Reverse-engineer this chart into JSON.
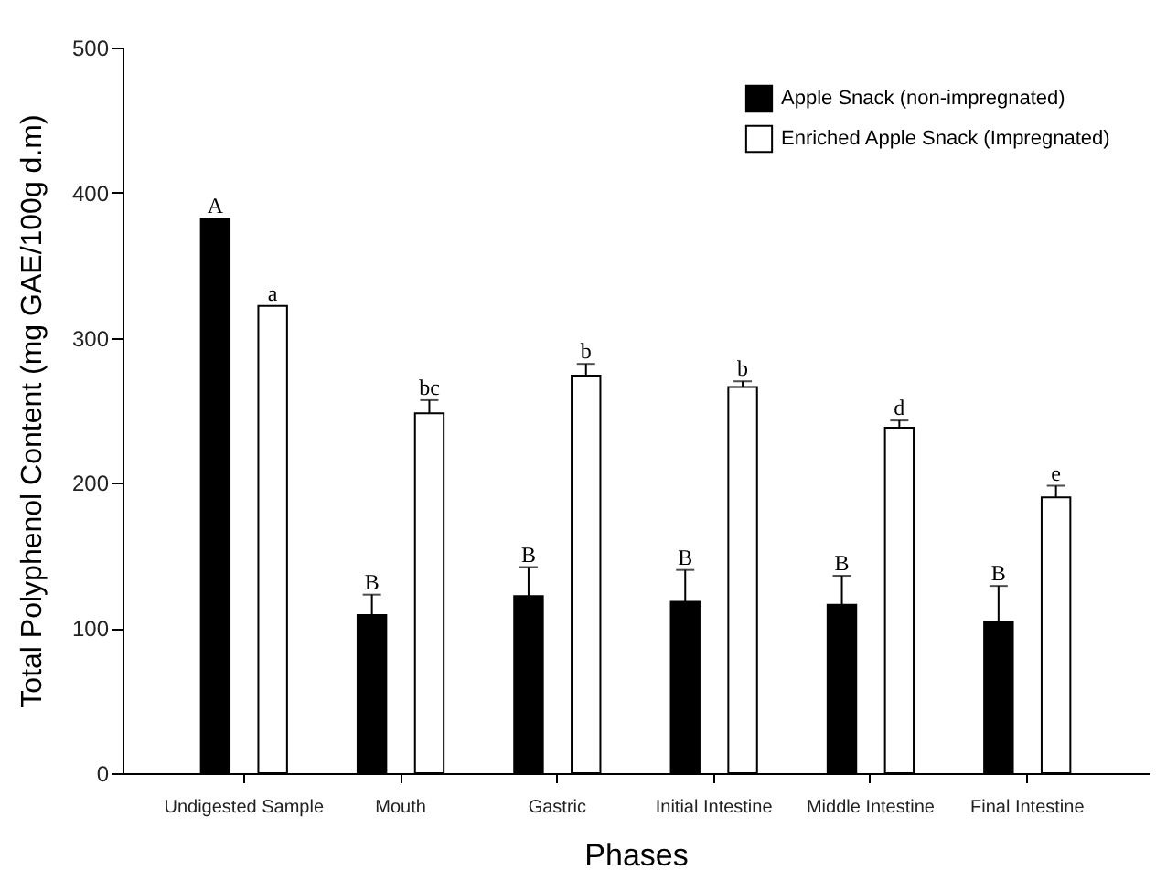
{
  "chart_data": {
    "type": "bar",
    "xlabel": "Phases",
    "ylabel": "Total Polyphenol Content  (mg GAE/100g d.m)",
    "categories": [
      "Undigested Sample",
      "Mouth",
      "Gastric",
      "Initial Intestine",
      "Middle Intestine",
      "Final Intestine"
    ],
    "series": [
      {
        "name": "Apple Snack (non-impregnated)",
        "color": "#000000",
        "values": [
          382,
          109,
          122,
          118,
          116,
          104
        ],
        "errors": [
          null,
          14,
          20,
          22,
          20,
          25
        ],
        "value_labels": [
          "A",
          "B",
          "B",
          "B",
          "B",
          "B"
        ]
      },
      {
        "name": "Enriched Apple Snack (Impregnated)",
        "color": "#ffffff",
        "values": [
          322,
          248,
          274,
          266,
          238,
          190
        ],
        "errors": [
          null,
          9,
          8,
          4,
          5,
          8
        ],
        "value_labels": [
          "a",
          "bc",
          "b",
          "b",
          "d",
          "e"
        ]
      }
    ],
    "ylim": [
      0,
      500
    ],
    "yticks": [
      0,
      100,
      200,
      300,
      400,
      500
    ],
    "legend": "top right"
  }
}
